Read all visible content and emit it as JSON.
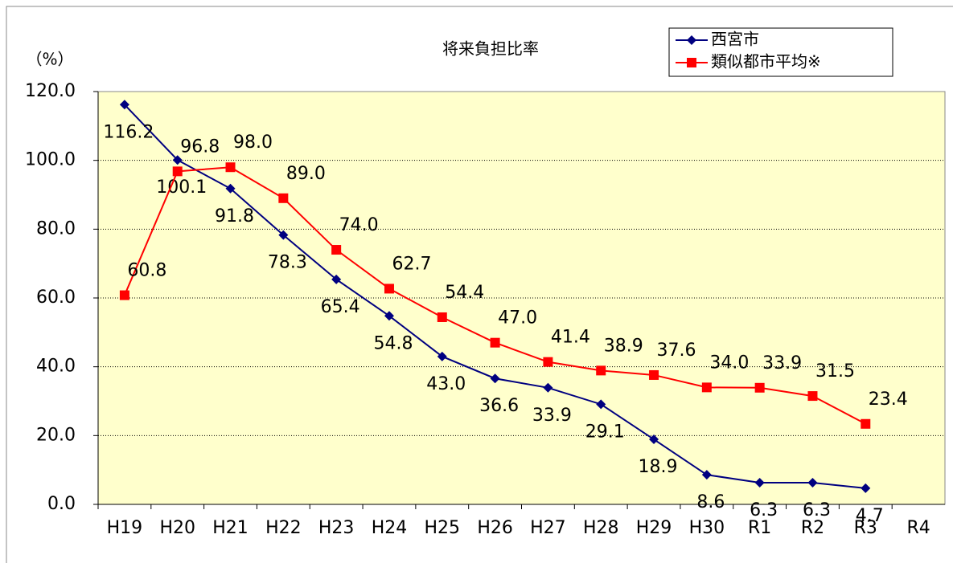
{
  "chart_data": {
    "type": "line",
    "title": "将来負担比率",
    "y_label": "（%）",
    "categories": [
      "H19",
      "H20",
      "H21",
      "H22",
      "H23",
      "H24",
      "H25",
      "H26",
      "H27",
      "H28",
      "H29",
      "H30",
      "R1",
      "R2",
      "R3",
      "R4"
    ],
    "series": [
      {
        "name": "西宮市",
        "color": "#000080",
        "marker": "diamond",
        "values": [
          116.2,
          100.1,
          91.8,
          78.3,
          65.4,
          54.8,
          43.0,
          36.6,
          33.9,
          29.1,
          18.9,
          8.6,
          6.3,
          6.3,
          4.7,
          null
        ],
        "value_labels": [
          "116.2",
          "100.1",
          "91.8",
          "78.3",
          "65.4",
          "54.8",
          "43.0",
          "36.6",
          "33.9",
          "29.1",
          "18.9",
          "8.6",
          "6.3",
          "6.3",
          "4.7",
          null
        ]
      },
      {
        "name": "類似都市平均※",
        "color": "#ff0000",
        "marker": "square",
        "values": [
          60.8,
          96.8,
          98.0,
          89.0,
          74.0,
          62.7,
          54.4,
          47.0,
          41.4,
          38.9,
          37.6,
          34.0,
          33.9,
          31.5,
          23.4,
          null
        ],
        "value_labels": [
          "60.8",
          "96.8",
          "98.0",
          "89.0",
          "74.0",
          "62.7",
          "54.4",
          "47.0",
          "41.4",
          "38.9",
          "37.6",
          "34.0",
          "33.9",
          "31.5",
          "23.4",
          null
        ]
      }
    ],
    "ylim": [
      0,
      120
    ],
    "yticks": [
      {
        "value": 0,
        "label": "0.0"
      },
      {
        "value": 20,
        "label": "20.0"
      },
      {
        "value": 40,
        "label": "40.0"
      },
      {
        "value": 60,
        "label": "60.0"
      },
      {
        "value": 80,
        "label": "80.0"
      },
      {
        "value": 100,
        "label": "100.0"
      },
      {
        "value": 120,
        "label": "120.0"
      }
    ],
    "grid": true,
    "legend": "top-right"
  }
}
